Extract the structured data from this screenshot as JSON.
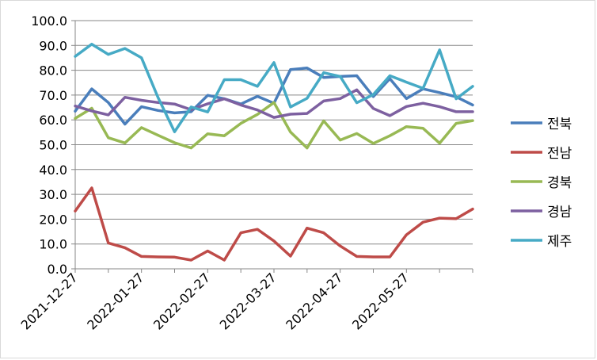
{
  "chart_data": {
    "type": "line",
    "title": "",
    "xlabel": "",
    "ylabel": "",
    "ylim": [
      0,
      100
    ],
    "yticks": [
      "0.0",
      "10.0",
      "20.0",
      "30.0",
      "40.0",
      "50.0",
      "60.0",
      "70.0",
      "80.0",
      "90.0",
      "100.0"
    ],
    "xtick_labels": [
      "2021-12-27",
      "2022-01-27",
      "2022-02-27",
      "2022-03-27",
      "2022-04-27",
      "2022-05-27"
    ],
    "xtick_positions": [
      0,
      4,
      8,
      12,
      16,
      20
    ],
    "x": [
      "2021-12-27",
      "2022-01-03",
      "2022-01-10",
      "2022-01-17",
      "2022-01-24",
      "2022-01-31",
      "2022-02-07",
      "2022-02-14",
      "2022-02-21",
      "2022-02-28",
      "2022-03-07",
      "2022-03-14",
      "2022-03-21",
      "2022-03-28",
      "2022-04-04",
      "2022-04-11",
      "2022-04-18",
      "2022-04-25",
      "2022-05-02",
      "2022-05-09",
      "2022-05-16",
      "2022-05-23",
      "2022-05-30",
      "2022-06-06",
      "2022-06-13"
    ],
    "grid": true,
    "legend_position": "right",
    "series": [
      {
        "name": "전북",
        "color": "#4a7ebb",
        "values": [
          63.5,
          72.5,
          67.0,
          58.3,
          65.3,
          63.8,
          62.8,
          63.3,
          69.9,
          68.5,
          66.4,
          69.5,
          66.7,
          80.3,
          80.9,
          77.1,
          77.5,
          77.8,
          69.4,
          76.6,
          68.6,
          72.5,
          71.0,
          69.3,
          66.0
        ]
      },
      {
        "name": "전남",
        "color": "#be4b48",
        "values": [
          23.3,
          32.6,
          10.4,
          8.5,
          5.0,
          4.8,
          4.7,
          3.5,
          7.2,
          3.5,
          14.5,
          15.9,
          11.2,
          5.1,
          16.4,
          14.5,
          9.2,
          5.0,
          4.8,
          4.8,
          13.7,
          18.8,
          20.4,
          20.2,
          24.1
        ]
      },
      {
        "name": "경북",
        "color": "#98b954",
        "values": [
          60.6,
          64.7,
          52.8,
          50.7,
          56.9,
          53.8,
          50.8,
          48.7,
          54.4,
          53.6,
          58.6,
          62.2,
          67.0,
          55.1,
          48.7,
          59.6,
          51.9,
          54.5,
          50.5,
          53.6,
          57.3,
          56.6,
          50.6,
          58.6,
          59.7
        ]
      },
      {
        "name": "경남",
        "color": "#7d60a0",
        "values": [
          65.6,
          63.6,
          62.0,
          69.1,
          67.9,
          67.0,
          66.4,
          64.1,
          66.5,
          68.5,
          66.0,
          64.0,
          61.0,
          62.3,
          62.6,
          67.6,
          68.6,
          72.1,
          64.6,
          61.7,
          65.4,
          66.7,
          65.3,
          63.3,
          63.3
        ]
      },
      {
        "name": "제주",
        "color": "#46aac5",
        "values": [
          85.6,
          90.5,
          86.4,
          88.8,
          85.0,
          69.0,
          55.2,
          65.2,
          63.2,
          76.2,
          76.2,
          73.5,
          83.1,
          65.2,
          68.7,
          79.0,
          77.5,
          66.9,
          70.2,
          77.8,
          75.2,
          72.7,
          88.2,
          68.5,
          73.5
        ]
      }
    ]
  }
}
